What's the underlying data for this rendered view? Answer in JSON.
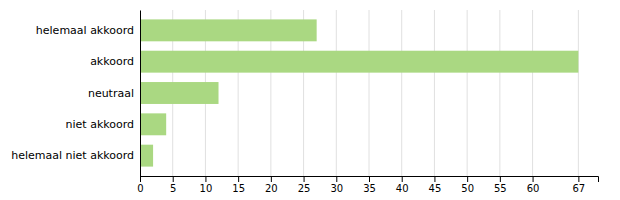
{
  "chart_data": {
    "type": "bar",
    "orientation": "horizontal",
    "categories": [
      "helemaal akkoord",
      "akkoord",
      "neutraal",
      "niet akkoord",
      "helemaal niet akkoord"
    ],
    "values": [
      27,
      67,
      12,
      4,
      2
    ],
    "color": "#aad882",
    "xlim": [
      0,
      70
    ],
    "xticks": [
      0,
      5,
      10,
      15,
      20,
      25,
      30,
      35,
      40,
      45,
      50,
      55,
      60,
      67
    ],
    "grid": true
  }
}
